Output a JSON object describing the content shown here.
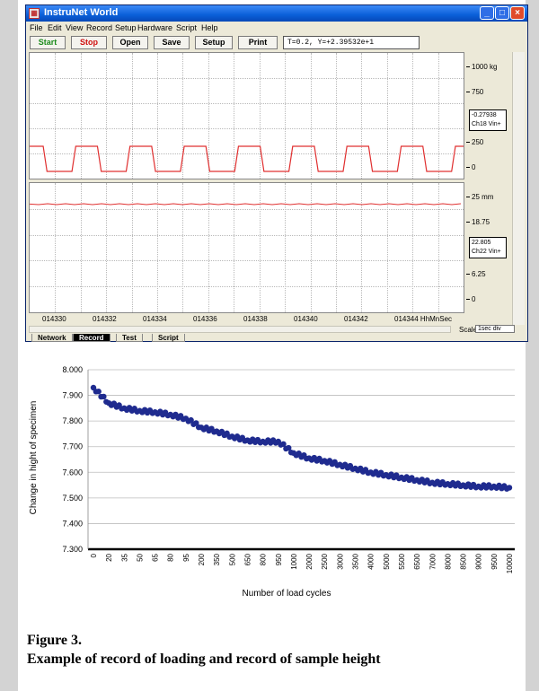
{
  "window": {
    "title": "InstruNet World",
    "controls": [
      "_",
      "□",
      "×"
    ],
    "menu": [
      "File",
      "Edit",
      "View",
      "Record",
      "Setup",
      "Hardware",
      "Script",
      "Help"
    ],
    "toolbar": {
      "start": "Start",
      "stop": "Stop",
      "open": "Open",
      "save": "Save",
      "setup": "Setup",
      "print": "Print",
      "readout": "T=0.2,  Y=+2.39532e+1"
    },
    "colors": {
      "start": "#1a8a1a",
      "stop": "#d01010",
      "trace": "#e03030"
    },
    "top_plot": {
      "ticks": [
        "1000 kg",
        "750",
        "",
        "250",
        "0"
      ],
      "value_box": [
        "-0.27938",
        "Ch18 Vin+"
      ],
      "high_level_kg": 250,
      "low_level_kg": 0,
      "pulse_count": 8
    },
    "bottom_plot": {
      "ticks": [
        "25 mm",
        "18.75",
        "",
        "6.25",
        "0"
      ],
      "value_box": [
        "22.805",
        "Ch22 Vin+"
      ],
      "level_mm": 22.805
    },
    "time_axis": [
      "014330",
      "014332",
      "014334",
      "014336",
      "014338",
      "014340",
      "014342",
      "014344 HhMnSec"
    ],
    "tabs": [
      "Network",
      "Record",
      "Test",
      "Script"
    ],
    "active_tab": "Record",
    "scale_label": "Scale",
    "scale_value": "1sec div"
  },
  "chart_data": {
    "type": "scatter",
    "title": "",
    "xlabel": "Number of load cycles",
    "ylabel": "Change in hight of specimen",
    "ylim": [
      7.3,
      8.0
    ],
    "yticks": [
      "8.000",
      "7.900",
      "7.800",
      "7.700",
      "7.600",
      "7.500",
      "7.400",
      "7.300"
    ],
    "categories": [
      "0",
      "20",
      "35",
      "50",
      "65",
      "80",
      "95",
      "200",
      "350",
      "500",
      "650",
      "800",
      "950",
      "1000",
      "2000",
      "2500",
      "3000",
      "3500",
      "4000",
      "5000",
      "5500",
      "6500",
      "7000",
      "8000",
      "8500",
      "9000",
      "9500",
      "10000"
    ],
    "values": [
      7.93,
      7.87,
      7.85,
      7.84,
      7.835,
      7.825,
      7.81,
      7.775,
      7.76,
      7.74,
      7.725,
      7.72,
      7.72,
      7.675,
      7.655,
      7.645,
      7.63,
      7.615,
      7.6,
      7.59,
      7.58,
      7.57,
      7.56,
      7.555,
      7.55,
      7.545,
      7.545,
      7.54
    ],
    "grid": true,
    "marker_color": "#1f2b8f"
  },
  "caption": {
    "line1": "Figure 3.",
    "line2": "Example of record of loading and record of sample height"
  }
}
